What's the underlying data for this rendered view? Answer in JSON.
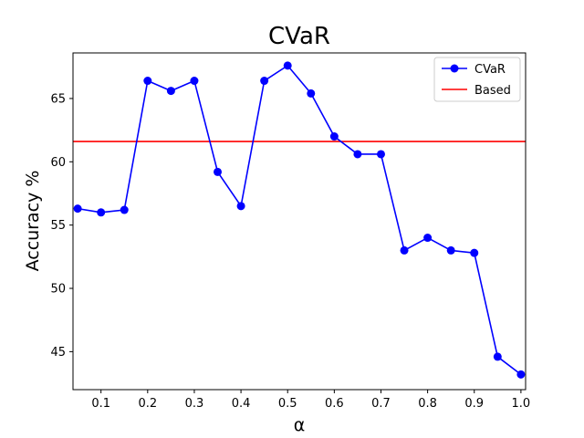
{
  "chart_data": {
    "type": "line",
    "title": "CVaR",
    "xlabel": "α",
    "ylabel": "Accuracy %",
    "xlim": [
      0.04,
      1.01
    ],
    "ylim": [
      42.0,
      68.6
    ],
    "x_ticks": [
      0.1,
      0.2,
      0.3,
      0.4,
      0.5,
      0.6,
      0.7,
      0.8,
      0.9,
      1.0
    ],
    "x_tick_labels": [
      "0.1",
      "0.2",
      "0.3",
      "0.4",
      "0.5",
      "0.6",
      "0.7",
      "0.8",
      "0.9",
      "1.0"
    ],
    "y_ticks": [
      45,
      50,
      55,
      60,
      65
    ],
    "y_tick_labels": [
      "45",
      "50",
      "55",
      "60",
      "65"
    ],
    "grid": false,
    "legend_position": "top-right",
    "series": [
      {
        "name": "CVaR",
        "color": "#0000ff",
        "marker": "circle",
        "x": [
          0.05,
          0.1,
          0.15,
          0.2,
          0.25,
          0.3,
          0.35,
          0.4,
          0.45,
          0.5,
          0.55,
          0.6,
          0.65,
          0.7,
          0.75,
          0.8,
          0.85,
          0.9,
          0.95,
          1.0
        ],
        "y": [
          56.3,
          56.0,
          56.2,
          66.4,
          65.6,
          66.4,
          59.2,
          56.5,
          66.4,
          67.6,
          65.4,
          62.0,
          60.6,
          60.6,
          53.0,
          54.0,
          53.0,
          52.8,
          44.6,
          43.2
        ]
      },
      {
        "name": "Based",
        "color": "#ff0000",
        "marker": "none",
        "value": 61.6
      }
    ]
  }
}
